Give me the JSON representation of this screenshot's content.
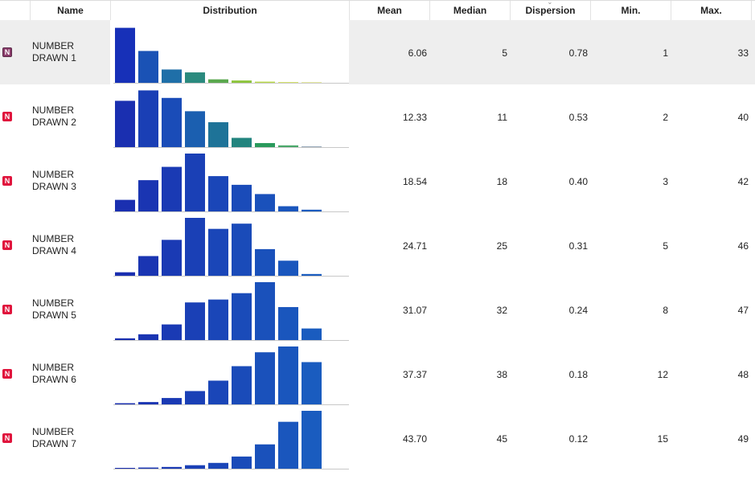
{
  "columns": {
    "name": "Name",
    "distribution": "Distribution",
    "mean": "Mean",
    "median": "Median",
    "dispersion": "Dispersion",
    "min": "Min.",
    "max": "Max."
  },
  "rows": [
    {
      "badge": "N",
      "name": "NUMBER DRAWN 1",
      "mean": "6.06",
      "median": "5",
      "dispersion": "0.78",
      "min": "1",
      "max": "33",
      "hist": [
        0.95,
        0.55,
        0.23,
        0.18,
        0.06,
        0.04,
        0.02,
        0.01,
        0.005
      ]
    },
    {
      "badge": "N",
      "name": "NUMBER DRAWN 2",
      "mean": "12.33",
      "median": "11",
      "dispersion": "0.53",
      "min": "2",
      "max": "40",
      "hist": [
        0.8,
        0.98,
        0.85,
        0.62,
        0.43,
        0.16,
        0.07,
        0.03,
        0.01
      ]
    },
    {
      "badge": "N",
      "name": "NUMBER DRAWN 3",
      "mean": "18.54",
      "median": "18",
      "dispersion": "0.40",
      "min": "3",
      "max": "42",
      "hist": [
        0.2,
        0.54,
        0.77,
        1.0,
        0.61,
        0.46,
        0.3,
        0.09,
        0.03
      ]
    },
    {
      "badge": "N",
      "name": "NUMBER DRAWN 4",
      "mean": "24.71",
      "median": "25",
      "dispersion": "0.31",
      "min": "5",
      "max": "46",
      "hist": [
        0.06,
        0.34,
        0.62,
        1.0,
        0.81,
        0.9,
        0.46,
        0.26,
        0.03
      ]
    },
    {
      "badge": "N",
      "name": "NUMBER DRAWN 5",
      "mean": "31.07",
      "median": "32",
      "dispersion": "0.24",
      "min": "8",
      "max": "47",
      "hist": [
        0.03,
        0.1,
        0.27,
        0.65,
        0.7,
        0.81,
        1.0,
        0.57,
        0.2
      ]
    },
    {
      "badge": "N",
      "name": "NUMBER DRAWN 6",
      "mean": "37.37",
      "median": "38",
      "dispersion": "0.18",
      "min": "12",
      "max": "48",
      "hist": [
        0.02,
        0.04,
        0.11,
        0.23,
        0.41,
        0.66,
        0.9,
        1.0,
        0.73
      ]
    },
    {
      "badge": "N",
      "name": "NUMBER DRAWN 7",
      "mean": "43.70",
      "median": "45",
      "dispersion": "0.12",
      "min": "15",
      "max": "49",
      "hist": [
        0.01,
        0.02,
        0.03,
        0.06,
        0.1,
        0.21,
        0.42,
        0.81,
        1.0
      ]
    }
  ],
  "colors": {
    "selected_row": "#eeeeee",
    "badge_red": "#e0143c",
    "badge_selected": "#8a3b6a",
    "bar_palette_row1": [
      "#1730b8",
      "#1a52b5",
      "#1f6fa8",
      "#2a8a7e",
      "#5aa84e",
      "#8cc43c",
      "#b8d84a",
      "#d6e46a",
      "#e8eca0"
    ],
    "bar_palette_row2": [
      "#1a2fb0",
      "#1a3fb5",
      "#1a4cb8",
      "#1b5fb0",
      "#1e7398",
      "#22847e",
      "#2a9a5c",
      "#4aa86a",
      "#9ab"
    ],
    "bar_blue_dark": "#1a2fb0",
    "bar_blue_light": "#1a5cbf"
  }
}
